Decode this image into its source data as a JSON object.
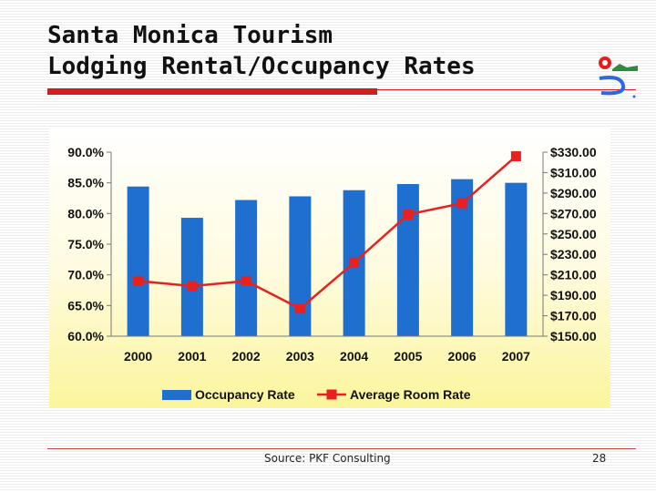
{
  "slide": {
    "title_line1": "Santa Monica Tourism",
    "title_line2": "Lodging Rental/Occupancy Rates",
    "source": "Source: PKF Consulting",
    "page_number": "28",
    "logo_icon": "santa-monica-logo-icon",
    "colors": {
      "title_bar": "#d21e1e",
      "bar": "#1f6fd0",
      "line": "#e82020",
      "logo_red": "#e21f1f",
      "logo_green": "#2e8b3e",
      "logo_blue": "#2a6bd8"
    }
  },
  "chart_data": {
    "type": "bar",
    "categories": [
      "2000",
      "2001",
      "2002",
      "2003",
      "2004",
      "2005",
      "2006",
      "2007"
    ],
    "series": [
      {
        "name": "Occupancy Rate",
        "type": "bar",
        "axis": "left",
        "values": [
          84.4,
          79.3,
          82.2,
          82.8,
          83.8,
          84.8,
          85.6,
          85.0
        ]
      },
      {
        "name": "Average Room Rate",
        "type": "line",
        "axis": "right",
        "values": [
          204,
          199,
          204,
          177,
          222,
          269,
          280,
          326
        ]
      }
    ],
    "y_left": {
      "min": 60,
      "max": 90,
      "step": 5,
      "ticks": [
        "60.0%",
        "65.0%",
        "70.0%",
        "75.0%",
        "80.0%",
        "85.0%",
        "90.0%"
      ]
    },
    "y_right": {
      "min": 150,
      "max": 330,
      "step": 20,
      "ticks": [
        "$150.00",
        "$170.00",
        "$190.00",
        "$210.00",
        "$230.00",
        "$250.00",
        "$270.00",
        "$290.00",
        "$310.00",
        "$330.00"
      ]
    },
    "legend": "bottom",
    "grid": false
  }
}
